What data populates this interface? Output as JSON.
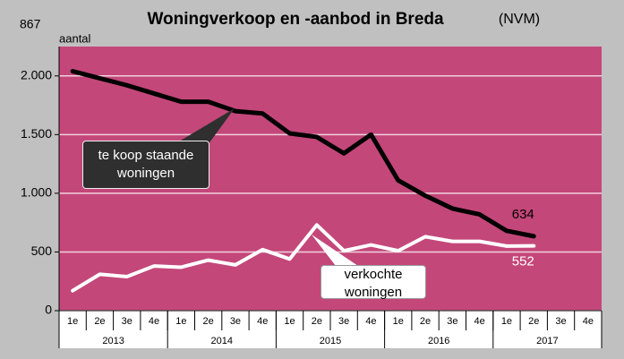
{
  "chart_data": {
    "type": "line",
    "title": "Woningverkoop en -aanbod in Breda",
    "subtitle": "(NVM)",
    "corner_label": "867",
    "y_label": "aantal",
    "categories": [
      "1e",
      "2e",
      "3e",
      "4e",
      "1e",
      "2e",
      "3e",
      "4e",
      "1e",
      "2e",
      "3e",
      "4e",
      "1e",
      "2e",
      "3e",
      "4e",
      "1e",
      "2e",
      "3e",
      "4e"
    ],
    "groups": [
      {
        "label": "2013",
        "span": 4
      },
      {
        "label": "2014",
        "span": 4
      },
      {
        "label": "2015",
        "span": 4
      },
      {
        "label": "2016",
        "span": 4
      },
      {
        "label": "2017",
        "span": 4
      }
    ],
    "series": [
      {
        "name": "te koop staande woningen",
        "color": "#000000",
        "values": [
          2040,
          1980,
          1920,
          1850,
          1780,
          1780,
          1700,
          1680,
          1510,
          1480,
          1340,
          1500,
          1110,
          980,
          870,
          820,
          680,
          634,
          null,
          null
        ]
      },
      {
        "name": "verkochte woningen",
        "color": "#ffffff",
        "values": [
          170,
          310,
          290,
          380,
          370,
          430,
          390,
          520,
          440,
          730,
          510,
          560,
          510,
          630,
          590,
          590,
          550,
          552,
          null,
          null
        ]
      }
    ],
    "ylim": [
      0,
      2250
    ],
    "yticks": [
      0,
      500,
      {
        "value": 1000,
        "label": "1.000"
      },
      {
        "value": 1500,
        "label": "1.500"
      },
      {
        "value": 2000,
        "label": "2.000"
      }
    ],
    "grid": true,
    "plot_color": "#c4477a"
  }
}
